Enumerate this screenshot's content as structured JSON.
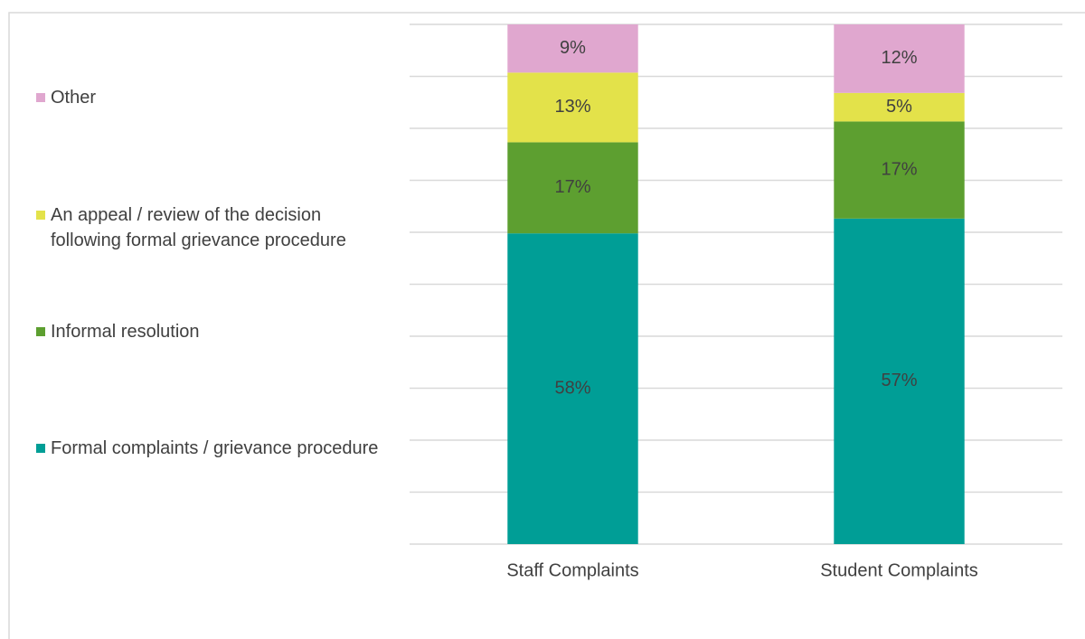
{
  "chart_data": {
    "type": "bar",
    "stacking": "percent",
    "categories": [
      "Staff Complaints",
      "Student Complaints"
    ],
    "series": [
      {
        "name": "Formal complaints / grievance procedure",
        "color": "#009e96",
        "values": [
          58,
          57
        ],
        "value_labels": [
          "58%",
          "57%"
        ]
      },
      {
        "name": "Informal resolution",
        "color": "#5d9f30",
        "values": [
          17,
          17
        ],
        "value_labels": [
          "17%",
          "17%"
        ]
      },
      {
        "name": "An appeal / review of the decision following formal grievance procedure",
        "color": "#e3e24a",
        "values": [
          13,
          5
        ],
        "value_labels": [
          "13%",
          "5%"
        ]
      },
      {
        "name": "Other",
        "color": "#e0a7cf",
        "values": [
          9,
          12
        ],
        "value_labels": [
          "9%",
          "12%"
        ]
      }
    ],
    "ylim": [
      0,
      100
    ],
    "yticks": [
      0,
      10,
      20,
      30,
      40,
      50,
      60,
      70,
      80,
      90,
      100
    ],
    "grid": true,
    "legend": "left"
  }
}
